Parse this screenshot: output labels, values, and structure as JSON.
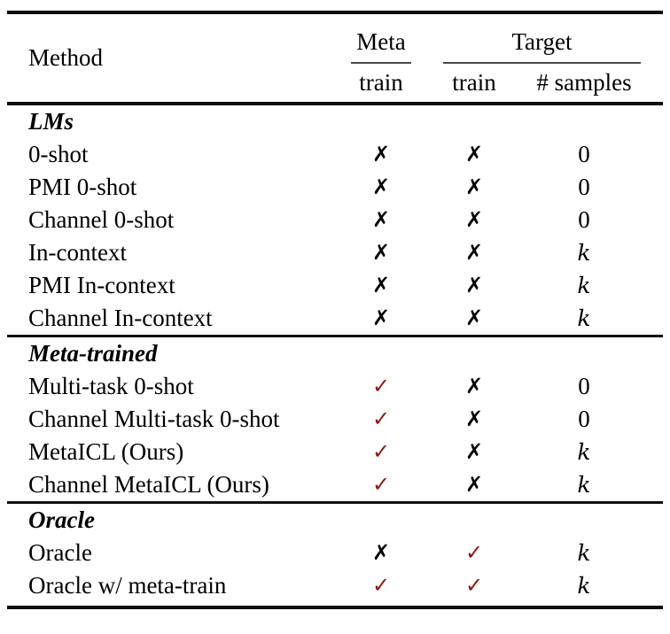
{
  "colors": {
    "check_mark": "#8B1A10",
    "cross_mark": "#000000",
    "rule": "#0c0c0c"
  },
  "glyphs": {
    "check": "✓",
    "cross": "✗"
  },
  "header": {
    "method": "Method",
    "meta_group": "Meta",
    "target_group": "Target",
    "meta_sub": "train",
    "target_train_sub": "train",
    "target_samples_sub": "# samples"
  },
  "sections": [
    {
      "title": "LMs",
      "rows": [
        {
          "method": "0-shot",
          "meta_train": "cross",
          "target_train": "cross",
          "num_samples": "0"
        },
        {
          "method": "PMI 0-shot",
          "meta_train": "cross",
          "target_train": "cross",
          "num_samples": "0"
        },
        {
          "method": "Channel 0-shot",
          "meta_train": "cross",
          "target_train": "cross",
          "num_samples": "0"
        },
        {
          "method": "In-context",
          "meta_train": "cross",
          "target_train": "cross",
          "num_samples": "k"
        },
        {
          "method": "PMI In-context",
          "meta_train": "cross",
          "target_train": "cross",
          "num_samples": "k"
        },
        {
          "method": "Channel In-context",
          "meta_train": "cross",
          "target_train": "cross",
          "num_samples": "k"
        }
      ]
    },
    {
      "title": "Meta-trained",
      "rows": [
        {
          "method": "Multi-task 0-shot",
          "meta_train": "check",
          "target_train": "cross",
          "num_samples": "0"
        },
        {
          "method": "Channel Multi-task 0-shot",
          "meta_train": "check",
          "target_train": "cross",
          "num_samples": "0"
        },
        {
          "method": "MetaICL (Ours)",
          "meta_train": "check",
          "target_train": "cross",
          "num_samples": "k"
        },
        {
          "method": "Channel MetaICL (Ours)",
          "meta_train": "check",
          "target_train": "cross",
          "num_samples": "k"
        }
      ]
    },
    {
      "title": "Oracle",
      "rows": [
        {
          "method": "Oracle",
          "meta_train": "cross",
          "target_train": "check",
          "num_samples": "k"
        },
        {
          "method": "Oracle w/ meta-train",
          "meta_train": "check",
          "target_train": "check",
          "num_samples": "k"
        }
      ]
    }
  ]
}
